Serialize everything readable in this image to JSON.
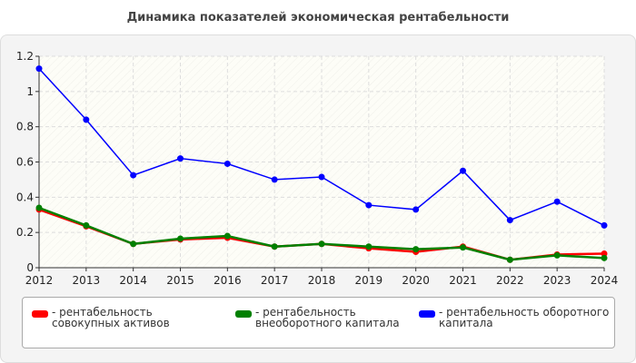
{
  "chart_data": {
    "type": "line",
    "title": "Динамика показателей экономическая рентабельности",
    "x": [
      "2012",
      "2013",
      "2014",
      "2015",
      "2016",
      "2017",
      "2018",
      "2019",
      "2020",
      "2021",
      "2022",
      "2023",
      "2024"
    ],
    "ylim": [
      0,
      1.2
    ],
    "yticks": [
      "0",
      "0.2",
      "0.4",
      "0.6",
      "0.8",
      "1",
      "1.2"
    ],
    "grid": true,
    "legend_position": "bottom",
    "series": [
      {
        "name": "- рентабельность совокупных активов",
        "color": "#ff0000",
        "values": [
          0.33,
          0.235,
          0.135,
          0.16,
          0.17,
          0.12,
          0.135,
          0.11,
          0.09,
          0.12,
          0.045,
          0.075,
          0.08
        ]
      },
      {
        "name": "- рентабельность внеоборотного капитала",
        "color": "#008000",
        "values": [
          0.34,
          0.24,
          0.135,
          0.165,
          0.18,
          0.12,
          0.135,
          0.12,
          0.105,
          0.115,
          0.045,
          0.07,
          0.055
        ]
      },
      {
        "name": "- рентабельность оборотного капитала",
        "color": "#0000ff",
        "values": [
          1.13,
          0.84,
          0.525,
          0.62,
          0.59,
          0.5,
          0.515,
          0.355,
          0.33,
          0.55,
          0.27,
          0.375,
          0.24
        ]
      }
    ]
  }
}
